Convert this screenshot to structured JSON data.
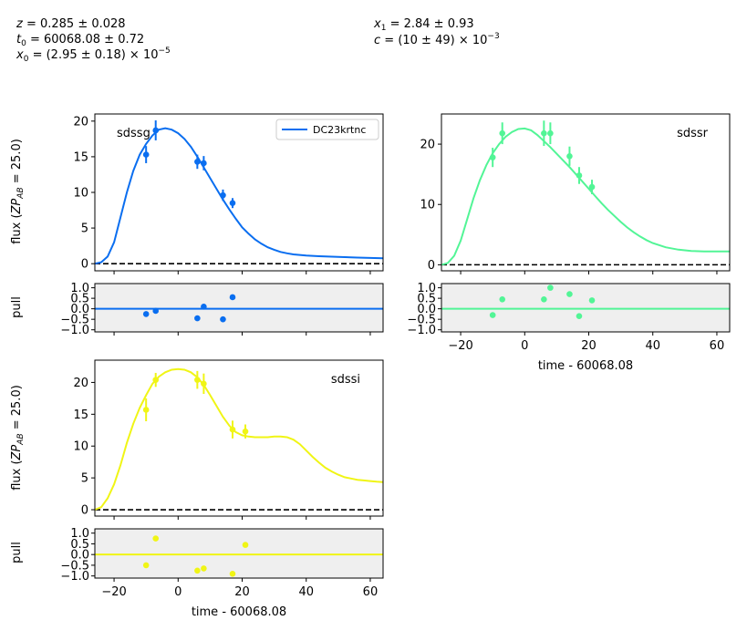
{
  "params": {
    "left": [
      "z = 0.285 ± 0.028",
      "t0 = 60068.08 ± 0.72",
      "x0 = (2.95 ± 0.18) × 10^-5"
    ],
    "right": [
      "x1 = 2.84 ± 0.93",
      "c = (10 ± 49) × 10^-3"
    ]
  },
  "labels": {
    "ylabel_flux": "flux (ZP_AB = 25.0)",
    "ylabel_pull": "pull",
    "xlabel": "time - 60068.08"
  },
  "legend": {
    "label": "DC23krtnc"
  },
  "colors": {
    "g": "#0a6ef0",
    "r": "#52f596",
    "i": "#f0f515",
    "pull_bg": "#efefef"
  },
  "chart_data": [
    {
      "type": "line",
      "band": "sdssg",
      "xlim": [
        -26,
        64
      ],
      "ylim": [
        -1,
        21
      ],
      "yticks": [
        0,
        5,
        10,
        15,
        20
      ],
      "xticks": [
        -20,
        0,
        20,
        40,
        60
      ],
      "points": [
        [
          -10,
          15.3,
          1.2
        ],
        [
          -7,
          18.7,
          1.4
        ],
        [
          6,
          14.3,
          1.0
        ],
        [
          8,
          14.1,
          1.0
        ],
        [
          14,
          9.6,
          0.8
        ],
        [
          17,
          8.5,
          0.7
        ]
      ],
      "model": [
        [
          -26,
          0
        ],
        [
          -24,
          0.2
        ],
        [
          -22,
          1
        ],
        [
          -20,
          3
        ],
        [
          -18,
          6.5
        ],
        [
          -16,
          10
        ],
        [
          -14,
          13
        ],
        [
          -12,
          15.3
        ],
        [
          -10,
          16.8
        ],
        [
          -8,
          18
        ],
        [
          -6,
          18.8
        ],
        [
          -4,
          19
        ],
        [
          -2,
          18.8
        ],
        [
          0,
          18.3
        ],
        [
          2,
          17.5
        ],
        [
          4,
          16.4
        ],
        [
          6,
          15
        ],
        [
          8,
          13.5
        ],
        [
          10,
          12
        ],
        [
          12,
          10.5
        ],
        [
          14,
          9
        ],
        [
          16,
          7.6
        ],
        [
          18,
          6.3
        ],
        [
          20,
          5.1
        ],
        [
          22,
          4.2
        ],
        [
          24,
          3.4
        ],
        [
          26,
          2.8
        ],
        [
          28,
          2.3
        ],
        [
          30,
          1.95
        ],
        [
          32,
          1.65
        ],
        [
          34,
          1.45
        ],
        [
          36,
          1.3
        ],
        [
          40,
          1.15
        ],
        [
          44,
          1.05
        ],
        [
          48,
          0.98
        ],
        [
          52,
          0.92
        ],
        [
          56,
          0.86
        ],
        [
          60,
          0.8
        ],
        [
          64,
          0.75
        ]
      ],
      "pull": {
        "ylim": [
          -1.1,
          1.2
        ],
        "yticks": [
          -1.0,
          -0.5,
          0.0,
          0.5,
          1.0
        ],
        "points": [
          [
            -10,
            -0.25
          ],
          [
            -7,
            -0.1
          ],
          [
            6,
            -0.45
          ],
          [
            8,
            0.1
          ],
          [
            14,
            -0.5
          ],
          [
            17,
            0.55
          ]
        ]
      }
    },
    {
      "type": "line",
      "band": "sdssr",
      "xlim": [
        -26,
        64
      ],
      "ylim": [
        -1,
        25
      ],
      "yticks": [
        0,
        10,
        20
      ],
      "xticks": [
        -20,
        0,
        20,
        40,
        60
      ],
      "points": [
        [
          -10,
          17.8,
          1.6
        ],
        [
          -7,
          21.8,
          1.8
        ],
        [
          6,
          21.8,
          2.1
        ],
        [
          8,
          21.8,
          1.8
        ],
        [
          14,
          18,
          1.6
        ],
        [
          17,
          14.8,
          1.4
        ],
        [
          21,
          12.9,
          1.2
        ]
      ],
      "model": [
        [
          -26,
          0
        ],
        [
          -24,
          0.3
        ],
        [
          -22,
          1.5
        ],
        [
          -20,
          4
        ],
        [
          -18,
          7.5
        ],
        [
          -16,
          11
        ],
        [
          -14,
          14
        ],
        [
          -12,
          16.5
        ],
        [
          -10,
          18.5
        ],
        [
          -8,
          20
        ],
        [
          -6,
          21.2
        ],
        [
          -4,
          22
        ],
        [
          -2,
          22.5
        ],
        [
          0,
          22.6
        ],
        [
          2,
          22.3
        ],
        [
          4,
          21.5
        ],
        [
          6,
          20.5
        ],
        [
          8,
          19.5
        ],
        [
          10,
          18.4
        ],
        [
          12,
          17.3
        ],
        [
          14,
          16.2
        ],
        [
          16,
          15
        ],
        [
          18,
          13.8
        ],
        [
          20,
          12.6
        ],
        [
          22,
          11.4
        ],
        [
          24,
          10.2
        ],
        [
          26,
          9.1
        ],
        [
          28,
          8.1
        ],
        [
          30,
          7.1
        ],
        [
          32,
          6.2
        ],
        [
          34,
          5.4
        ],
        [
          36,
          4.7
        ],
        [
          38,
          4.1
        ],
        [
          40,
          3.6
        ],
        [
          44,
          2.9
        ],
        [
          48,
          2.5
        ],
        [
          52,
          2.3
        ],
        [
          56,
          2.2
        ],
        [
          60,
          2.2
        ],
        [
          64,
          2.2
        ]
      ],
      "pull": {
        "ylim": [
          -1.1,
          1.2
        ],
        "yticks": [
          -1.0,
          -0.5,
          0.0,
          0.5,
          1.0
        ],
        "points": [
          [
            -10,
            -0.3
          ],
          [
            -7,
            0.45
          ],
          [
            6,
            0.45
          ],
          [
            8,
            1.0
          ],
          [
            14,
            0.7
          ],
          [
            17,
            -0.35
          ],
          [
            21,
            0.4
          ]
        ]
      }
    },
    {
      "type": "line",
      "band": "sdssi",
      "xlim": [
        -26,
        64
      ],
      "ylim": [
        -1,
        23.5
      ],
      "yticks": [
        0,
        5,
        10,
        15,
        20
      ],
      "xticks": [
        -20,
        0,
        20,
        40,
        60
      ],
      "points": [
        [
          -10,
          15.7,
          1.8
        ],
        [
          -7,
          20.4,
          1.1
        ],
        [
          6,
          20.4,
          1.4
        ],
        [
          8,
          19.8,
          1.6
        ],
        [
          17,
          12.6,
          1.4
        ],
        [
          21,
          12.3,
          1.1
        ]
      ],
      "model": [
        [
          -26,
          0
        ],
        [
          -24,
          0.4
        ],
        [
          -22,
          1.8
        ],
        [
          -20,
          4
        ],
        [
          -18,
          7
        ],
        [
          -16,
          10.5
        ],
        [
          -14,
          13.5
        ],
        [
          -12,
          16
        ],
        [
          -10,
          18
        ],
        [
          -8,
          19.8
        ],
        [
          -6,
          20.9
        ],
        [
          -4,
          21.6
        ],
        [
          -2,
          22
        ],
        [
          0,
          22.1
        ],
        [
          2,
          22
        ],
        [
          4,
          21.6
        ],
        [
          6,
          20.8
        ],
        [
          8,
          19.6
        ],
        [
          10,
          18
        ],
        [
          12,
          16.3
        ],
        [
          14,
          14.6
        ],
        [
          16,
          13.2
        ],
        [
          18,
          12.2
        ],
        [
          20,
          11.7
        ],
        [
          22,
          11.5
        ],
        [
          24,
          11.4
        ],
        [
          26,
          11.4
        ],
        [
          28,
          11.4
        ],
        [
          30,
          11.5
        ],
        [
          32,
          11.5
        ],
        [
          34,
          11.4
        ],
        [
          36,
          11
        ],
        [
          38,
          10.3
        ],
        [
          40,
          9.3
        ],
        [
          42,
          8.3
        ],
        [
          44,
          7.4
        ],
        [
          46,
          6.6
        ],
        [
          48,
          6
        ],
        [
          50,
          5.5
        ],
        [
          52,
          5.1
        ],
        [
          54,
          4.9
        ],
        [
          56,
          4.7
        ],
        [
          58,
          4.6
        ],
        [
          60,
          4.5
        ],
        [
          62,
          4.4
        ],
        [
          64,
          4.35
        ]
      ],
      "pull": {
        "ylim": [
          -1.1,
          1.2
        ],
        "yticks": [
          -1.0,
          -0.5,
          0.0,
          0.5,
          1.0
        ],
        "points": [
          [
            -10,
            -0.5
          ],
          [
            -7,
            0.75
          ],
          [
            6,
            -0.75
          ],
          [
            8,
            -0.65
          ],
          [
            17,
            -0.9
          ],
          [
            21,
            0.45
          ]
        ]
      }
    }
  ]
}
